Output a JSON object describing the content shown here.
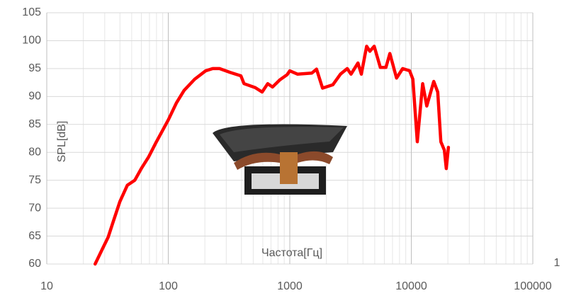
{
  "chart_data": {
    "type": "line",
    "xscale": "log",
    "grid": true,
    "minor_grid": true,
    "x_label": "Частота[Гц]",
    "y_label": "SPL[dB]",
    "annotation": "1",
    "xlim": [
      10,
      100000
    ],
    "xticks": [
      10,
      100,
      1000,
      10000,
      100000
    ],
    "ylim": [
      60,
      105
    ],
    "yticks": [
      60,
      65,
      70,
      75,
      80,
      85,
      90,
      95,
      100,
      105
    ],
    "series": [
      {
        "name": "SPL",
        "color": "#ff0000",
        "x": [
          25,
          29,
          32,
          35,
          40,
          46,
          53,
          60,
          69,
          79,
          100,
          117,
          135,
          165,
          203,
          232,
          264,
          324,
          396,
          420,
          519,
          592,
          658,
          721,
          830,
          950,
          1000,
          1160,
          1520,
          1660,
          1860,
          2260,
          2610,
          2970,
          3190,
          3640,
          3880,
          4290,
          4560,
          4950,
          5560,
          6180,
          6660,
          7560,
          8490,
          9690,
          10300,
          11200,
          12400,
          13400,
          15300,
          16500,
          17500,
          18700,
          19400,
          20200
        ],
        "values": [
          60,
          62.9,
          64.8,
          67.4,
          71.2,
          74.1,
          75,
          77.1,
          79.2,
          81.7,
          85.8,
          88.9,
          91.1,
          93.1,
          94.6,
          95,
          95,
          94.3,
          93.7,
          92.3,
          91.6,
          90.8,
          92.3,
          91.7,
          93,
          93.9,
          94.6,
          94,
          94.2,
          94.9,
          91.5,
          92.1,
          94,
          95,
          94,
          96,
          94,
          99,
          98.1,
          99,
          95.2,
          95.2,
          97.7,
          93.3,
          95,
          94.6,
          93.1,
          81.9,
          92.3,
          88.3,
          92.7,
          90.8,
          81.9,
          80.4,
          77.1,
          80.9
        ]
      }
    ]
  }
}
